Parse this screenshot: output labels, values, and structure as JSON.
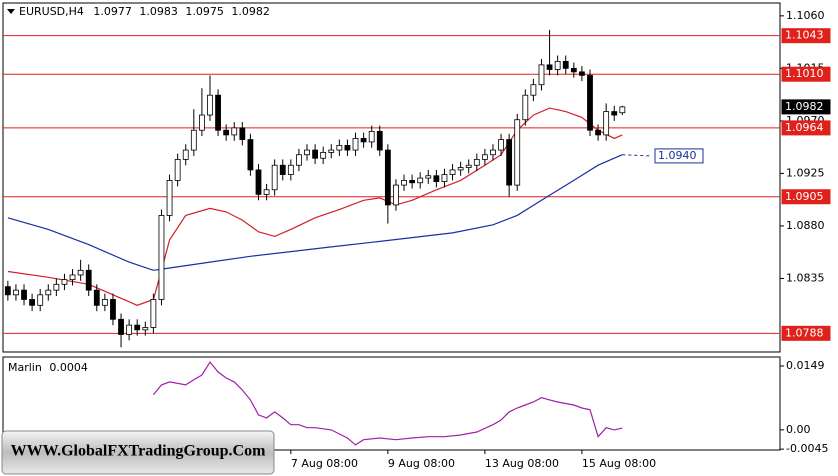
{
  "chart_data": [
    {
      "type": "candlestick",
      "title": "EURUSD,H4",
      "up_color": "#ffffff",
      "down_color": "#000000",
      "xlim": [
        -0.6,
        95.5
      ],
      "ylim": [
        1.0772,
        1.1071
      ],
      "yticks": [
        {
          "value": 1.106,
          "label": "1.1060"
        },
        1.1015,
        {
          "value": 1.097,
          "label": "1.0970"
        },
        1.0925,
        {
          "value": 1.088,
          "label": "1.0880"
        },
        1.0835
      ],
      "open": [
        1.0828,
        1.0821,
        1.0825,
        1.0817,
        1.0812,
        1.0821,
        1.0825,
        1.083,
        1.0834,
        1.0838,
        1.0842,
        1.0825,
        1.0812,
        1.0817,
        1.08,
        1.0787,
        1.0795,
        1.0791,
        1.0793,
        1.0817,
        1.0889,
        1.0919,
        1.0937,
        1.0945,
        1.0962,
        1.0975,
        1.0992,
        1.0962,
        1.0958,
        1.0964,
        1.0954,
        1.0928,
        1.0907,
        1.0911,
        1.0932,
        1.0924,
        1.0932,
        1.0941,
        1.0945,
        1.0938,
        1.0943,
        1.0945,
        1.0949,
        1.0945,
        1.0955,
        1.0952,
        1.0961,
        1.0945,
        1.0898,
        1.0915,
        1.0919,
        1.0917,
        1.0921,
        1.0923,
        1.0918,
        1.0924,
        1.0928,
        1.093,
        1.0932,
        1.0937,
        1.0941,
        1.0945,
        1.0954,
        1.0915,
        1.0971,
        1.0992,
        1.1001,
        1.1018,
        1.1014,
        1.1021,
        1.1015,
        1.1012,
        1.1009,
        1.0962,
        1.0958,
        1.0978,
        1.0977
      ],
      "high": [
        1.0833,
        1.083,
        1.083,
        1.0822,
        1.0826,
        1.083,
        1.0835,
        1.0839,
        1.0843,
        1.0851,
        1.0847,
        1.083,
        1.0822,
        1.0822,
        1.0805,
        1.08,
        1.08,
        1.0798,
        1.0822,
        1.0894,
        1.0924,
        1.0942,
        1.095,
        1.098,
        1.0998,
        1.1009,
        1.0997,
        1.0967,
        1.0969,
        1.0969,
        1.0959,
        1.0933,
        1.0916,
        1.0937,
        1.0937,
        1.0937,
        1.0946,
        1.095,
        1.095,
        1.0948,
        1.095,
        1.0954,
        1.0954,
        1.096,
        1.096,
        1.0966,
        1.0966,
        1.095,
        1.092,
        1.0924,
        1.0924,
        1.0926,
        1.0928,
        1.0928,
        1.0929,
        1.0933,
        1.0935,
        1.0937,
        1.0942,
        1.0946,
        1.095,
        1.0959,
        1.0959,
        1.0976,
        1.0997,
        1.1006,
        1.1023,
        1.1048,
        1.1026,
        1.1026,
        1.102,
        1.1017,
        1.1014,
        1.0967,
        1.0985,
        1.0983,
        1.0983
      ],
      "low": [
        1.0816,
        1.0816,
        1.0812,
        1.0807,
        1.0807,
        1.0816,
        1.082,
        1.0825,
        1.0829,
        1.0833,
        1.082,
        1.0807,
        1.0807,
        1.0795,
        1.0776,
        1.0782,
        1.0786,
        1.0786,
        1.0788,
        1.0812,
        1.0884,
        1.0914,
        1.0932,
        1.094,
        1.0957,
        1.097,
        1.0957,
        1.0953,
        1.0953,
        1.0949,
        1.0923,
        1.0902,
        1.0902,
        1.0906,
        1.0919,
        1.0919,
        1.0927,
        1.0936,
        1.0933,
        1.0933,
        1.0938,
        1.094,
        1.094,
        1.094,
        1.0947,
        1.0947,
        1.094,
        1.0882,
        1.0893,
        1.091,
        1.0912,
        1.0912,
        1.0916,
        1.0913,
        1.0913,
        1.0919,
        1.0923,
        1.0925,
        1.0927,
        1.0932,
        1.0936,
        1.094,
        1.0905,
        1.091,
        1.0966,
        1.0987,
        1.0996,
        1.1009,
        1.1009,
        1.101,
        1.1007,
        1.1004,
        1.0957,
        1.0953,
        1.0953,
        1.097,
        1.0975
      ],
      "close": [
        1.0821,
        1.0825,
        1.0817,
        1.0812,
        1.0821,
        1.0825,
        1.083,
        1.0834,
        1.0838,
        1.0842,
        1.0825,
        1.0812,
        1.0817,
        1.08,
        1.0787,
        1.0795,
        1.0791,
        1.0793,
        1.0817,
        1.0889,
        1.0919,
        1.0937,
        1.0945,
        1.0962,
        1.0975,
        1.0992,
        1.0962,
        1.0958,
        1.0964,
        1.0954,
        1.0928,
        1.0907,
        1.0911,
        1.0932,
        1.0924,
        1.0932,
        1.0941,
        1.0945,
        1.0938,
        1.0943,
        1.0945,
        1.0949,
        1.0945,
        1.0955,
        1.0952,
        1.0961,
        1.0945,
        1.0898,
        1.0915,
        1.0919,
        1.0917,
        1.0921,
        1.0923,
        1.0918,
        1.0924,
        1.0928,
        1.093,
        1.0932,
        1.0937,
        1.0941,
        1.0945,
        1.0954,
        1.0915,
        1.0971,
        1.0992,
        1.1001,
        1.1018,
        1.1014,
        1.1021,
        1.1015,
        1.1012,
        1.1009,
        1.0962,
        1.0958,
        1.0978,
        1.0975,
        1.0982
      ],
      "series": [
        {
          "color": "#d0202a",
          "x": [
            0,
            5,
            10,
            13,
            16,
            18,
            19,
            20,
            22,
            25,
            27,
            29,
            31,
            33,
            35,
            38,
            41,
            44,
            46,
            48,
            50,
            53,
            56,
            59,
            61,
            63,
            65,
            67,
            69,
            71,
            73,
            75,
            76
          ],
          "values": [
            1.0841,
            1.0836,
            1.083,
            1.0821,
            1.0812,
            1.0817,
            1.0842,
            1.0868,
            1.0889,
            1.0895,
            1.0892,
            1.0885,
            1.0875,
            1.0871,
            1.0877,
            1.0887,
            1.0894,
            1.0902,
            1.0904,
            1.0898,
            1.0902,
            1.0911,
            1.0919,
            1.0932,
            1.0941,
            1.0962,
            1.0975,
            1.0981,
            1.0978,
            1.0973,
            1.0962,
            1.0955,
            1.0958
          ]
        },
        {
          "color": "#1a2fa0",
          "x": [
            0,
            5,
            10,
            15,
            18,
            20,
            25,
            30,
            35,
            40,
            45,
            50,
            55,
            60,
            63,
            66,
            70,
            73,
            76
          ],
          "values": [
            1.0887,
            1.0877,
            1.0864,
            1.0849,
            1.0842,
            1.0844,
            1.0849,
            1.0854,
            1.0858,
            1.0862,
            1.0866,
            1.087,
            1.0874,
            1.0881,
            1.0889,
            1.0902,
            1.0919,
            1.0932,
            1.0941
          ]
        }
      ],
      "levels": [
        1.1043,
        {
          "value": 1.101,
          "label": "1.1010"
        },
        1.0964,
        1.0905,
        1.0788
      ],
      "level_color": "#e0201b",
      "forecast": {
        "value": 1.094,
        "label": "1.0940",
        "color": "#1a2fa0"
      }
    },
    {
      "type": "line",
      "xlim": [
        -0.6,
        95.5
      ],
      "ylim": [
        -0.0047,
        0.017
      ],
      "yticks": [
        0.0149,
        {
          "value": 0,
          "label": "0.00"
        },
        -0.0045
      ],
      "xticks": [
        {
          "value": 35,
          "label": "7 Aug 08:00"
        },
        {
          "value": 47,
          "label": "9 Aug 08:00"
        },
        {
          "value": 59,
          "label": "13 Aug 08:00"
        },
        {
          "value": 71,
          "label": "15 Aug 08:00"
        }
      ],
      "series": [
        {
          "name": "Marlin",
          "color": "#a020a8",
          "x": [
            18,
            19,
            20,
            22,
            23,
            24,
            25,
            26,
            27,
            28,
            29,
            30,
            31,
            32,
            33,
            34,
            35,
            36,
            37,
            38,
            40,
            42,
            43,
            44,
            46,
            48,
            50,
            52,
            54,
            56,
            58,
            60,
            61,
            62,
            63,
            64,
            65,
            66,
            67,
            68,
            70,
            71,
            72,
            73,
            74,
            75,
            76
          ],
          "values": [
            0.0082,
            0.0105,
            0.0112,
            0.0105,
            0.0117,
            0.0128,
            0.0158,
            0.0135,
            0.0121,
            0.0112,
            0.0093,
            0.007,
            0.0035,
            0.0028,
            0.0042,
            0.0028,
            0.0012,
            0.0012,
            0.0005,
            0.0005,
            0,
            -0.0019,
            -0.0035,
            -0.0023,
            -0.0019,
            -0.0023,
            -0.0019,
            -0.0016,
            -0.0016,
            -0.0012,
            -0.0005,
            0.0012,
            0.0023,
            0.0042,
            0.0051,
            0.0058,
            0.0065,
            0.0075,
            0.007,
            0.0065,
            0.0058,
            0.0051,
            0.0047,
            -0.0016,
            0.0005,
            0,
            0.0004
          ]
        }
      ]
    }
  ],
  "watermark": "WWW.GlobalFXTradingGroup.Com"
}
